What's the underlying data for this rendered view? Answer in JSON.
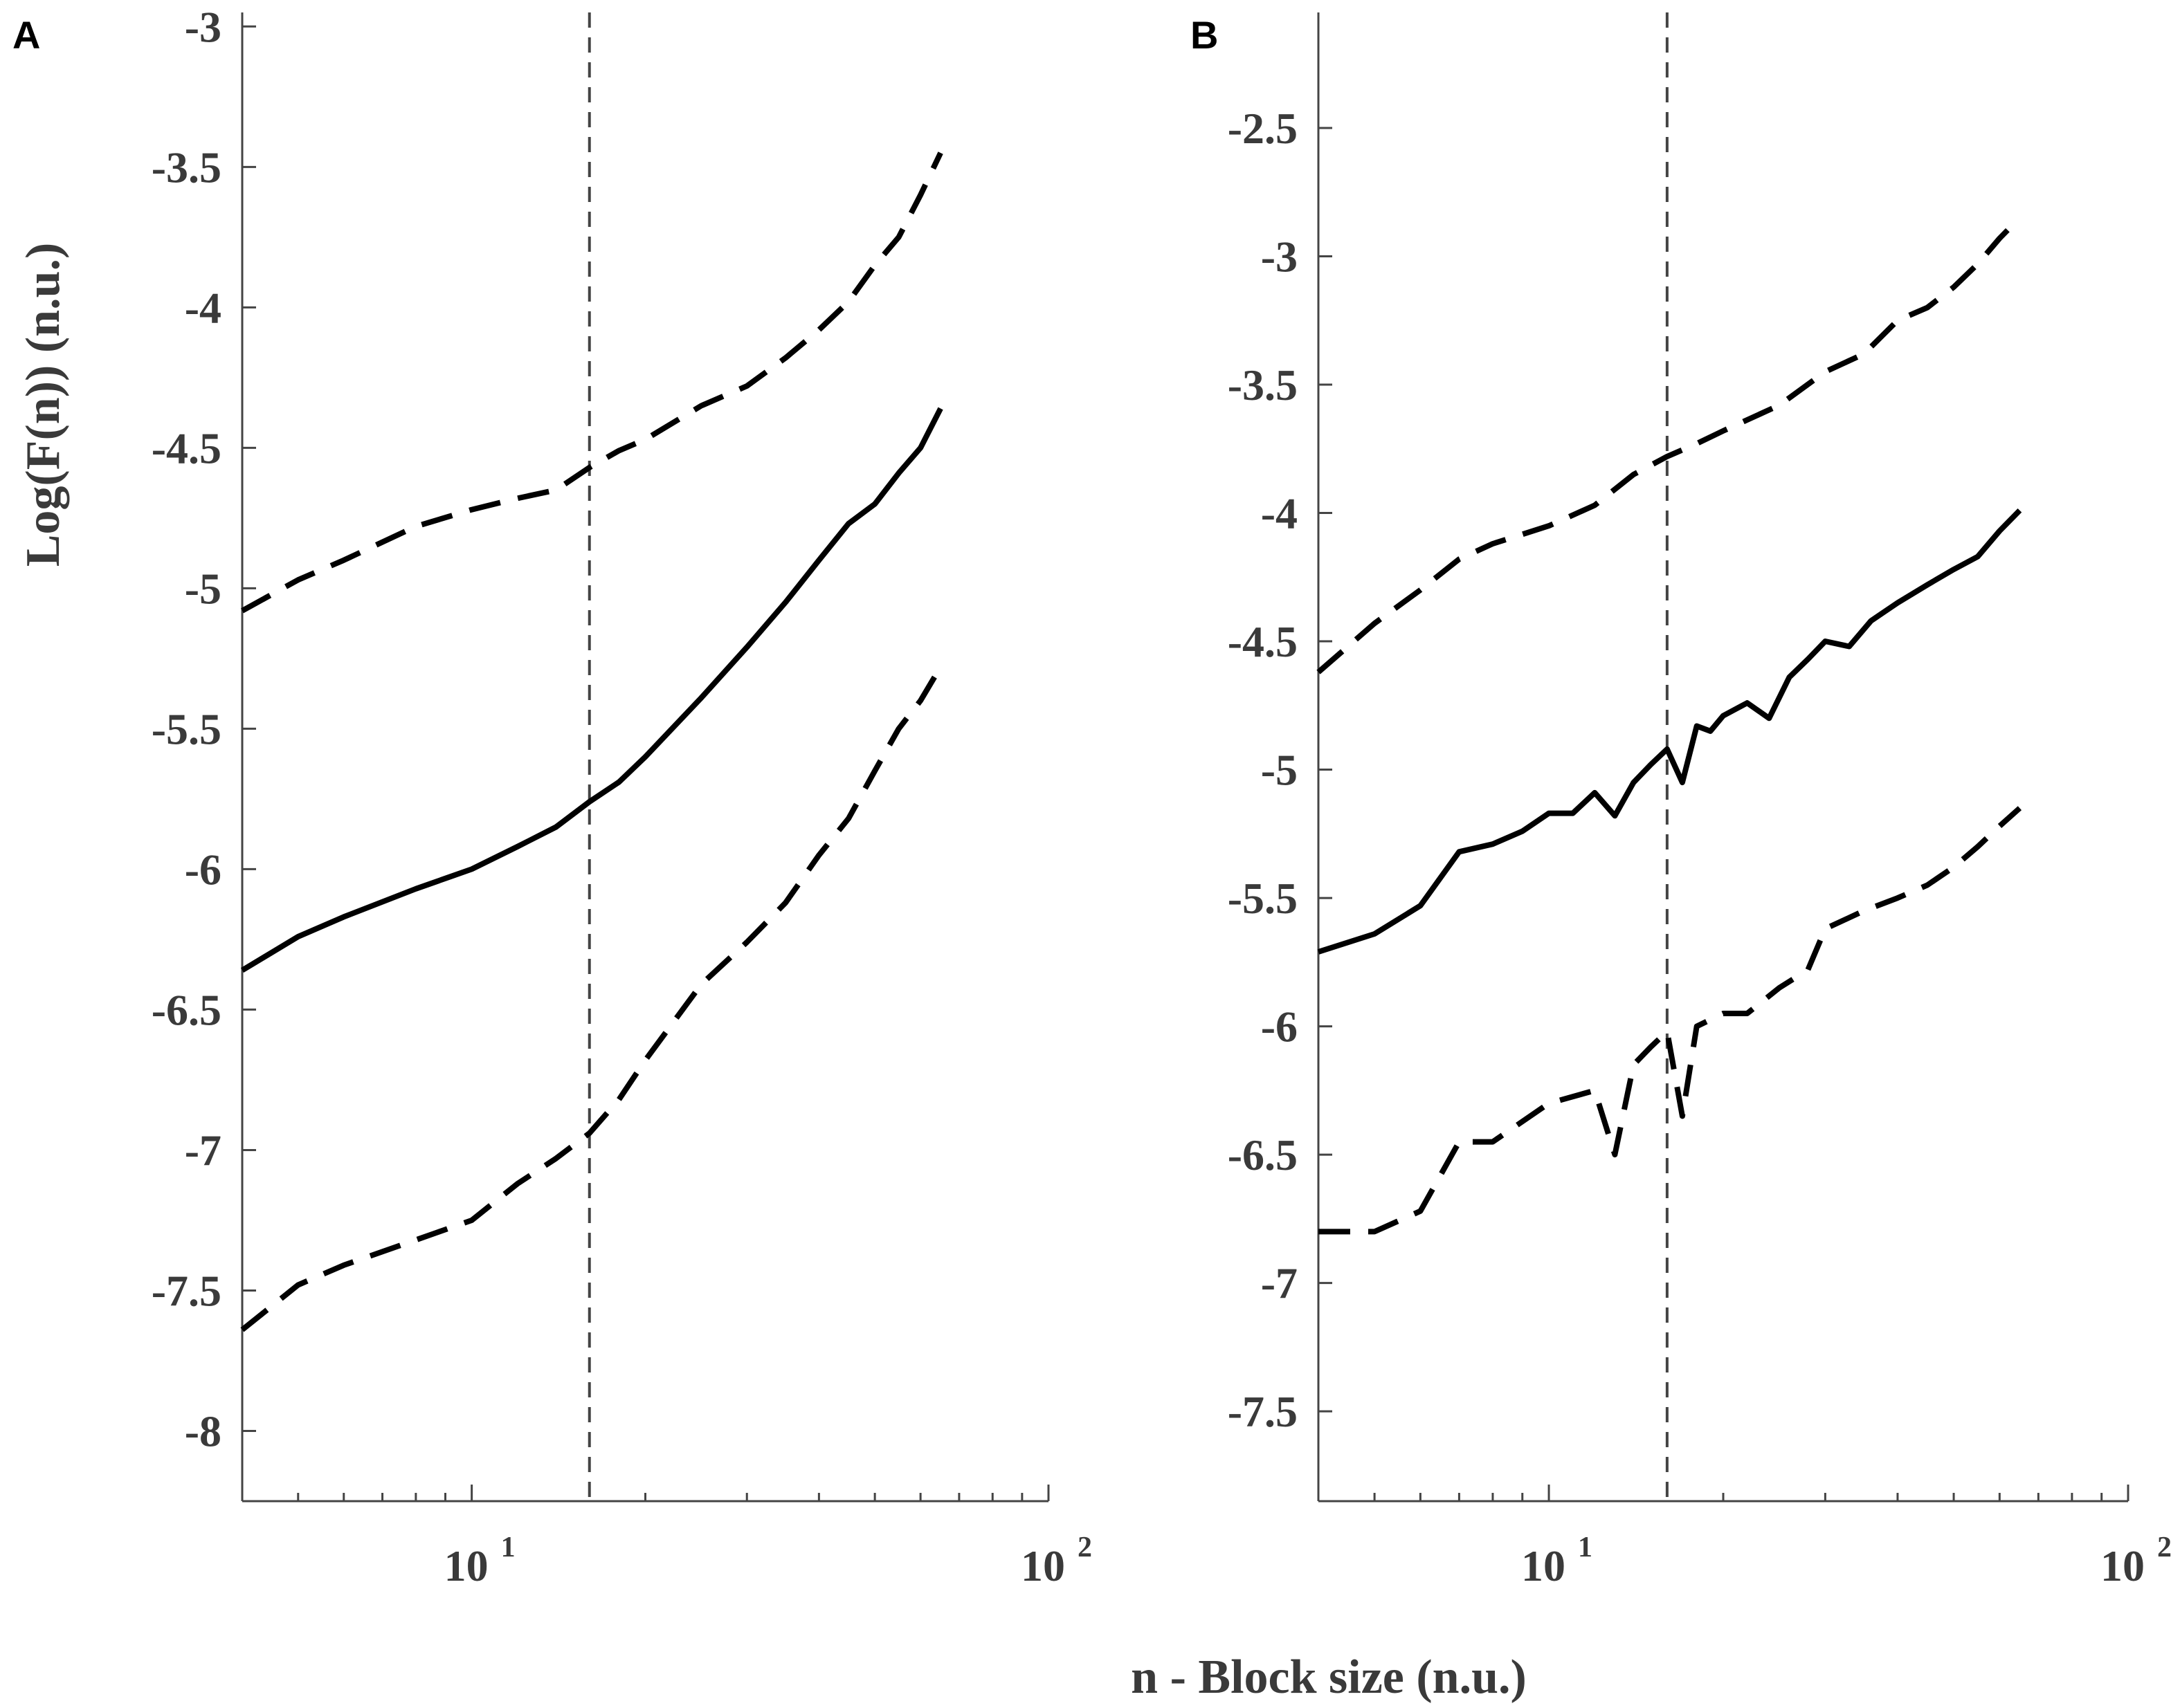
{
  "axis_labels": {
    "ylabel": "Log(F(n)) (n.u.)",
    "xlabel": "n - Block size (n.u.)"
  },
  "chart_data": [
    {
      "panel": "A",
      "type": "line",
      "xscale": "log",
      "xlim": [
        4,
        100
      ],
      "ylim": [
        -8.25,
        -2.95
      ],
      "x_ticks": [
        10,
        100
      ],
      "y_ticks": [
        -3,
        -3.5,
        -4,
        -4.5,
        -5,
        -5.5,
        -6,
        -6.5,
        -7,
        -7.5,
        -8
      ],
      "vline_x": 16,
      "series": [
        {
          "style": "dashed",
          "x": [
            4,
            5,
            6,
            8,
            10,
            12,
            14,
            16,
            18,
            20,
            25,
            30,
            35,
            40,
            45,
            50,
            55,
            60,
            65
          ],
          "values": [
            -5.08,
            -4.97,
            -4.9,
            -4.78,
            -4.72,
            -4.68,
            -4.65,
            -4.57,
            -4.51,
            -4.47,
            -4.35,
            -4.28,
            -4.18,
            -4.08,
            -3.98,
            -3.85,
            -3.75,
            -3.6,
            -3.45
          ]
        },
        {
          "style": "solid",
          "x": [
            4,
            5,
            6,
            8,
            10,
            12,
            14,
            16,
            18,
            20,
            25,
            30,
            35,
            40,
            45,
            50,
            55,
            60,
            65
          ],
          "values": [
            -6.36,
            -6.24,
            -6.17,
            -6.07,
            -6.0,
            -5.92,
            -5.85,
            -5.76,
            -5.69,
            -5.6,
            -5.39,
            -5.21,
            -5.05,
            -4.9,
            -4.77,
            -4.7,
            -4.59,
            -4.5,
            -4.36
          ]
        },
        {
          "style": "dashed",
          "x": [
            4,
            5,
            6,
            8,
            10,
            12,
            14,
            16,
            18,
            20,
            25,
            30,
            35,
            40,
            45,
            50,
            55,
            60,
            65
          ],
          "values": [
            -7.64,
            -7.48,
            -7.41,
            -7.32,
            -7.25,
            -7.12,
            -7.03,
            -6.94,
            -6.82,
            -6.68,
            -6.41,
            -6.26,
            -6.12,
            -5.95,
            -5.82,
            -5.65,
            -5.5,
            -5.4,
            -5.28
          ]
        }
      ]
    },
    {
      "panel": "B",
      "type": "line",
      "xscale": "log",
      "xlim": [
        4,
        100
      ],
      "ylim": [
        -7.85,
        -2.05
      ],
      "x_ticks": [
        10,
        100
      ],
      "y_ticks": [
        -2.5,
        -3,
        -3.5,
        -4,
        -4.5,
        -5,
        -5.5,
        -6,
        -6.5,
        -7,
        -7.5
      ],
      "vline_x": 16,
      "series": [
        {
          "style": "dashed",
          "x": [
            4,
            5,
            6,
            7,
            8,
            10,
            12,
            14,
            16,
            18,
            20,
            25,
            30,
            35,
            40,
            45,
            50,
            55,
            60,
            65
          ],
          "values": [
            -4.62,
            -4.43,
            -4.3,
            -4.18,
            -4.12,
            -4.05,
            -3.97,
            -3.85,
            -3.78,
            -3.73,
            -3.68,
            -3.58,
            -3.45,
            -3.38,
            -3.25,
            -3.2,
            -3.12,
            -3.03,
            -2.93,
            -2.85
          ]
        },
        {
          "style": "solid",
          "x": [
            4,
            5,
            6,
            7,
            8,
            9,
            10,
            11,
            12,
            13,
            14,
            15,
            16,
            17,
            18,
            19,
            20,
            22,
            24,
            26,
            28,
            30,
            33,
            36,
            40,
            45,
            50,
            55,
            60,
            65
          ],
          "values": [
            -5.71,
            -5.64,
            -5.53,
            -5.32,
            -5.29,
            -5.24,
            -5.17,
            -5.17,
            -5.09,
            -5.18,
            -5.05,
            -4.98,
            -4.92,
            -5.05,
            -4.83,
            -4.85,
            -4.79,
            -4.74,
            -4.8,
            -4.64,
            -4.57,
            -4.5,
            -4.52,
            -4.42,
            -4.35,
            -4.28,
            -4.22,
            -4.17,
            -4.07,
            -3.99
          ]
        },
        {
          "style": "dashed",
          "x": [
            4,
            5,
            6,
            7,
            8,
            10,
            12,
            13,
            14,
            15,
            16,
            17,
            18,
            20,
            22,
            25,
            28,
            30,
            35,
            40,
            45,
            50,
            55,
            60,
            65
          ],
          "values": [
            -6.8,
            -6.8,
            -6.72,
            -6.45,
            -6.45,
            -6.3,
            -6.25,
            -6.5,
            -6.15,
            -6.08,
            -6.02,
            -6.35,
            -6.0,
            -5.95,
            -5.95,
            -5.85,
            -5.78,
            -5.62,
            -5.55,
            -5.5,
            -5.45,
            -5.38,
            -5.3,
            -5.22,
            -5.15
          ]
        }
      ]
    }
  ]
}
